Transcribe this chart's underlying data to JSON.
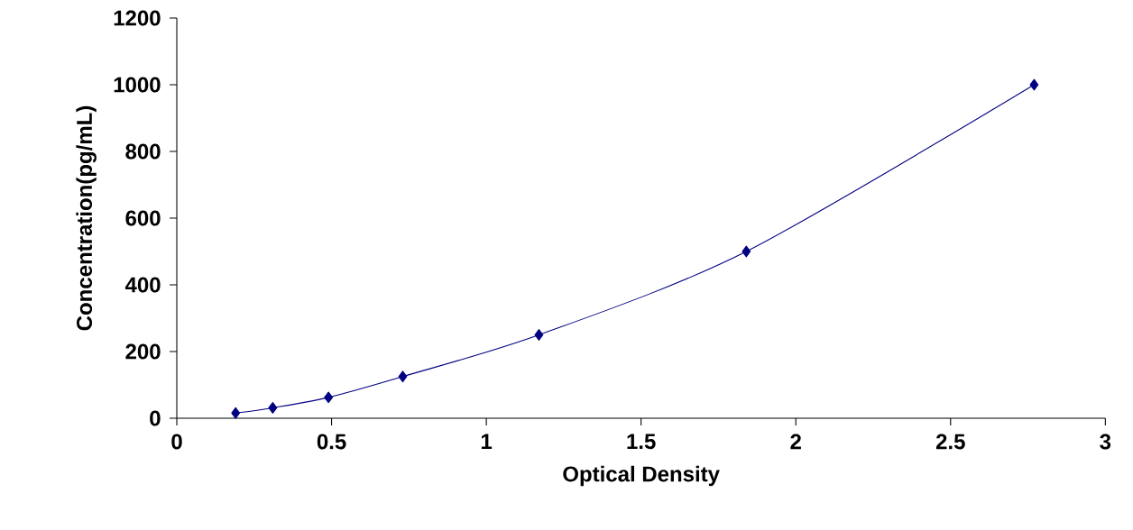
{
  "chart_data": {
    "type": "line",
    "xlabel": "Optical Density",
    "ylabel": "Concentration(pg/mL)",
    "x": [
      0.19,
      0.31,
      0.49,
      0.73,
      1.17,
      1.84,
      2.77
    ],
    "series": [
      {
        "color": "#000080",
        "values": [
          15.6,
          31.25,
          62.5,
          125,
          250,
          500,
          1000
        ]
      }
    ],
    "marker": "diamond",
    "line_style": "solid",
    "grid": false,
    "legend": false,
    "xlim": [
      0,
      3
    ],
    "ylim": [
      0,
      1200
    ],
    "xticks": [
      0,
      0.5,
      1,
      1.5,
      2,
      2.5,
      3
    ],
    "yticks": [
      0,
      200,
      400,
      600,
      800,
      1000,
      1200
    ]
  }
}
